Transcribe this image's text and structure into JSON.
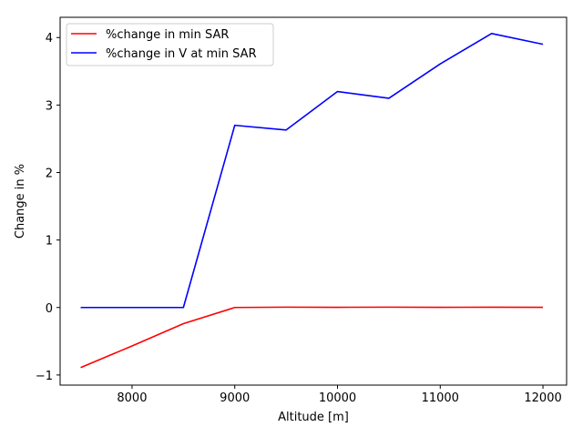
{
  "chart_data": {
    "type": "line",
    "xlabel": "Altitude [m]",
    "ylabel": "Change in %",
    "xlim": [
      7300,
      12230
    ],
    "ylim": [
      -1.15,
      4.3
    ],
    "xticks": [
      8000,
      9000,
      10000,
      11000,
      12000
    ],
    "yticks": [
      -1,
      0,
      1,
      2,
      3,
      4
    ],
    "ytick_labels": [
      "−1",
      "0",
      "1",
      "2",
      "3",
      "4"
    ],
    "grid": false,
    "legend_position": "top-left",
    "x": [
      7500,
      8000,
      8500,
      9000,
      9500,
      10000,
      10500,
      11000,
      11500,
      12000
    ],
    "series": [
      {
        "name": "%change in min SAR",
        "color": "#ff0000",
        "values": [
          -0.89,
          -0.57,
          -0.24,
          0.0,
          0.005,
          0.003,
          0.005,
          0.003,
          0.004,
          0.003
        ]
      },
      {
        "name": "%change in V at min SAR",
        "color": "#0000ff",
        "values": [
          0.0,
          0.0,
          0.0,
          2.7,
          2.63,
          3.2,
          3.1,
          3.61,
          4.06,
          3.9
        ]
      }
    ]
  }
}
